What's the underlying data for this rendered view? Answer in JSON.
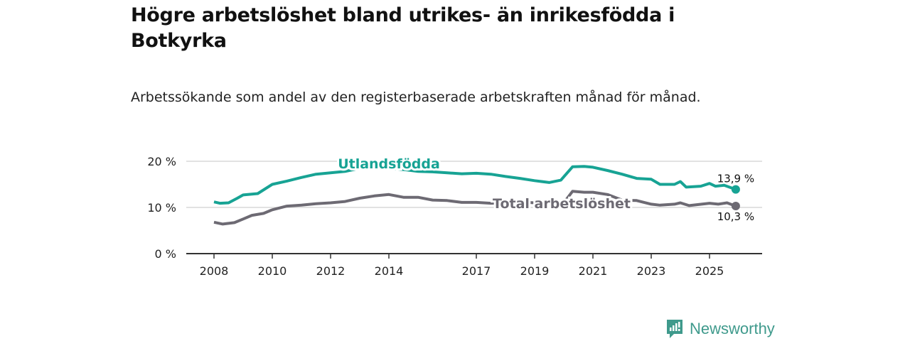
{
  "title": "Högre arbetslöshet bland utrikes- än inrikesfödda i Botkyrka",
  "subtitle": "Arbetssökande som andel av den registerbaserade arbetskraften månad för månad.",
  "brand": "Newsworthy",
  "colors": {
    "teal": "#17a394",
    "gray": "#6d6a73",
    "logo": "#3f9a8c"
  },
  "chart_data": {
    "type": "line",
    "ylim": [
      0,
      20
    ],
    "yticks": [
      0,
      10,
      20
    ],
    "ytick_labels": [
      "0 %",
      "10 %",
      "20 %"
    ],
    "xticks": [
      2008,
      2010,
      2012,
      2014,
      2017,
      2019,
      2021,
      2023,
      2025
    ],
    "xtick_labels": [
      "2008",
      "2010",
      "2012",
      "2014",
      "2017",
      "2019",
      "2021",
      "2023",
      "2025"
    ],
    "grid": true,
    "series": [
      {
        "name": "Utlandsfödda",
        "color": "#17a394",
        "end_label": "13,9 %",
        "x": [
          2008.0,
          2008.2,
          2008.5,
          2008.8,
          2009.0,
          2009.5,
          2010.0,
          2010.5,
          2011.0,
          2011.5,
          2012.0,
          2012.5,
          2013.0,
          2013.5,
          2014.0,
          2014.5,
          2015.0,
          2015.5,
          2016.0,
          2016.5,
          2017.0,
          2017.5,
          2018.0,
          2018.5,
          2019.0,
          2019.5,
          2019.9,
          2020.3,
          2020.7,
          2021.0,
          2021.5,
          2022.0,
          2022.5,
          2023.0,
          2023.3,
          2023.8,
          2024.0,
          2024.2,
          2024.7,
          2025.0,
          2025.2,
          2025.5,
          2025.9
        ],
        "y": [
          11.2,
          10.9,
          11.0,
          12.0,
          12.7,
          13.0,
          15.0,
          15.7,
          16.5,
          17.2,
          17.5,
          17.8,
          18.5,
          18.7,
          18.5,
          18.2,
          17.8,
          17.7,
          17.5,
          17.3,
          17.4,
          17.2,
          16.7,
          16.3,
          15.8,
          15.4,
          15.9,
          18.8,
          18.9,
          18.7,
          18.0,
          17.2,
          16.3,
          16.1,
          15.0,
          15.0,
          15.6,
          14.4,
          14.6,
          15.2,
          14.6,
          14.8,
          13.9
        ]
      },
      {
        "name": "Total arbetslöshet",
        "color": "#6d6a73",
        "end_label": "10,3 %",
        "x": [
          2008.0,
          2008.3,
          2008.7,
          2009.0,
          2009.3,
          2009.7,
          2010.0,
          2010.5,
          2011.0,
          2011.5,
          2012.0,
          2012.5,
          2013.0,
          2013.5,
          2014.0,
          2014.5,
          2015.0,
          2015.5,
          2016.0,
          2016.5,
          2017.0,
          2017.5,
          2018.0,
          2018.5,
          2019.0,
          2019.5,
          2020.0,
          2020.3,
          2020.7,
          2021.0,
          2021.5,
          2022.0,
          2022.5,
          2023.0,
          2023.3,
          2023.8,
          2024.0,
          2024.3,
          2025.0,
          2025.3,
          2025.6,
          2025.9
        ],
        "y": [
          6.8,
          6.4,
          6.7,
          7.5,
          8.3,
          8.7,
          9.5,
          10.3,
          10.5,
          10.8,
          11.0,
          11.3,
          12.0,
          12.5,
          12.8,
          12.2,
          12.2,
          11.6,
          11.5,
          11.1,
          11.1,
          10.9,
          11.0,
          11.2,
          11.0,
          10.8,
          11.0,
          13.5,
          13.3,
          13.3,
          12.8,
          11.6,
          11.5,
          10.7,
          10.5,
          10.7,
          11.0,
          10.4,
          10.9,
          10.7,
          11.0,
          10.3
        ]
      }
    ]
  }
}
